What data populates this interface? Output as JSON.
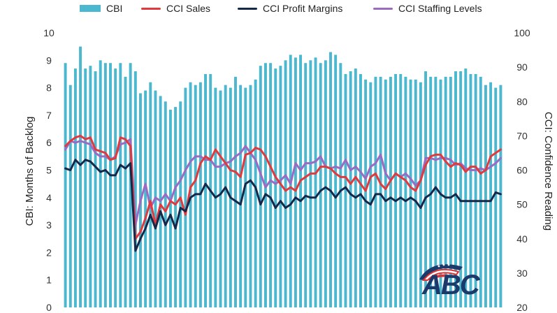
{
  "chart_data": {
    "type": "bar+line",
    "legend_position": "top",
    "grid": false,
    "colors": {
      "cbi": "#4BB8CF",
      "cci_sales": "#E03A3E",
      "cci_profit": "#16284A",
      "cci_staffing": "#9B6AC2"
    },
    "left_axis": {
      "label": "CBI: Months of Backlog",
      "range": [
        0,
        10
      ],
      "ticks": [
        "0",
        "1",
        "2",
        "3",
        "4",
        "5",
        "6",
        "7",
        "8",
        "9",
        "10"
      ]
    },
    "right_axis": {
      "label": "CCI: Confidence Reading",
      "range": [
        20,
        100
      ],
      "ticks": [
        "20",
        "30",
        "40",
        "50",
        "60",
        "70",
        "80",
        "90",
        "100"
      ]
    },
    "series": [
      {
        "name": "CBI",
        "type": "bar",
        "axis": "left",
        "values": [
          8.9,
          8.1,
          8.7,
          9.5,
          8.7,
          8.8,
          8.6,
          9.0,
          8.9,
          8.9,
          8.7,
          8.9,
          8.4,
          8.9,
          8.6,
          7.8,
          7.9,
          8.2,
          7.9,
          7.7,
          7.5,
          7.2,
          7.3,
          7.5,
          8.0,
          8.2,
          8.1,
          8.2,
          8.5,
          8.5,
          8.0,
          7.9,
          8.1,
          8.0,
          8.4,
          8.1,
          8.0,
          8.1,
          8.3,
          8.8,
          8.9,
          8.9,
          8.7,
          8.8,
          9.0,
          9.2,
          9.1,
          9.2,
          8.9,
          9.0,
          9.1,
          8.9,
          9.0,
          9.3,
          9.2,
          8.9,
          8.5,
          8.6,
          8.7,
          8.5,
          8.3,
          8.2,
          8.4,
          8.4,
          8.3,
          8.4,
          8.5,
          8.5,
          8.4,
          8.3,
          8.3,
          8.2,
          8.6,
          8.4,
          8.4,
          8.3,
          8.4,
          8.4,
          8.6,
          8.6,
          8.7,
          8.5,
          8.5,
          8.4,
          8.1,
          8.2,
          8.0,
          8.1
        ]
      },
      {
        "name": "CCI Sales",
        "type": "line",
        "axis": "right",
        "values": [
          67,
          68.5,
          69.5,
          70,
          69,
          69.5,
          66,
          65.5,
          65,
          63,
          63.5,
          69.5,
          69,
          67,
          40,
          42,
          46,
          51,
          44,
          50,
          48,
          51,
          50,
          52,
          47,
          55,
          57,
          62,
          64,
          63,
          66,
          64,
          62,
          60,
          59.5,
          58,
          64.5,
          65,
          66.5,
          66,
          64,
          61,
          58,
          56,
          54,
          55,
          54,
          57,
          58,
          59,
          59,
          61,
          61,
          60.5,
          59,
          58,
          58,
          56,
          58,
          56,
          54,
          58,
          59,
          56,
          54.5,
          57,
          59,
          58,
          57,
          55,
          54,
          57,
          61.5,
          64,
          64.5,
          64.5,
          62.5,
          61,
          62,
          61.5,
          59.5,
          61,
          61,
          59,
          60,
          64,
          65,
          66
        ]
      },
      {
        "name": "CCI Profit Margins",
        "type": "line",
        "axis": "right",
        "values": [
          60.5,
          60,
          63,
          61.5,
          63,
          62.5,
          61,
          59.5,
          60,
          58.5,
          58.5,
          61.5,
          60.5,
          62,
          36.5,
          40,
          43,
          47,
          43,
          48,
          44,
          47,
          43,
          49,
          48,
          52,
          53,
          53,
          56,
          54,
          52,
          53,
          55,
          52,
          51,
          50,
          56,
          57,
          55,
          50,
          53,
          52,
          49,
          51,
          49,
          50,
          52,
          51,
          52.5,
          52,
          52,
          54,
          55,
          54,
          52,
          54,
          55,
          53,
          52,
          53,
          51,
          50,
          53,
          53,
          51,
          52,
          51,
          52,
          51,
          52,
          51,
          49,
          52,
          53,
          55,
          53,
          52,
          52,
          53,
          51,
          51,
          51,
          51,
          51,
          51,
          51,
          53.5,
          53
        ]
      },
      {
        "name": "CCI Staffing Levels",
        "type": "line",
        "axis": "right",
        "values": [
          66,
          68.5,
          68,
          68.5,
          68,
          67.5,
          65,
          64,
          64,
          63,
          64,
          67.5,
          68,
          69,
          44,
          51,
          56,
          49,
          52,
          51,
          53,
          51,
          55,
          57,
          60,
          62.5,
          64,
          64,
          63,
          63,
          61,
          61,
          62,
          62.5,
          64,
          65,
          67,
          65,
          63,
          59,
          55,
          57,
          56,
          57,
          58.5,
          56,
          62,
          60,
          62,
          62,
          62.5,
          64,
          61,
          60.5,
          61,
          60.5,
          63,
          60,
          61,
          59.5,
          57.5,
          61,
          62,
          64.5,
          59,
          57,
          59,
          58,
          59,
          57.5,
          55.5,
          57,
          63.5,
          63.5,
          63,
          63.5,
          63.5,
          63,
          61.5,
          62,
          60.5,
          60,
          60,
          60.5,
          60,
          61,
          62,
          63.5
        ]
      }
    ]
  },
  "logo": {
    "text": "ABC"
  }
}
